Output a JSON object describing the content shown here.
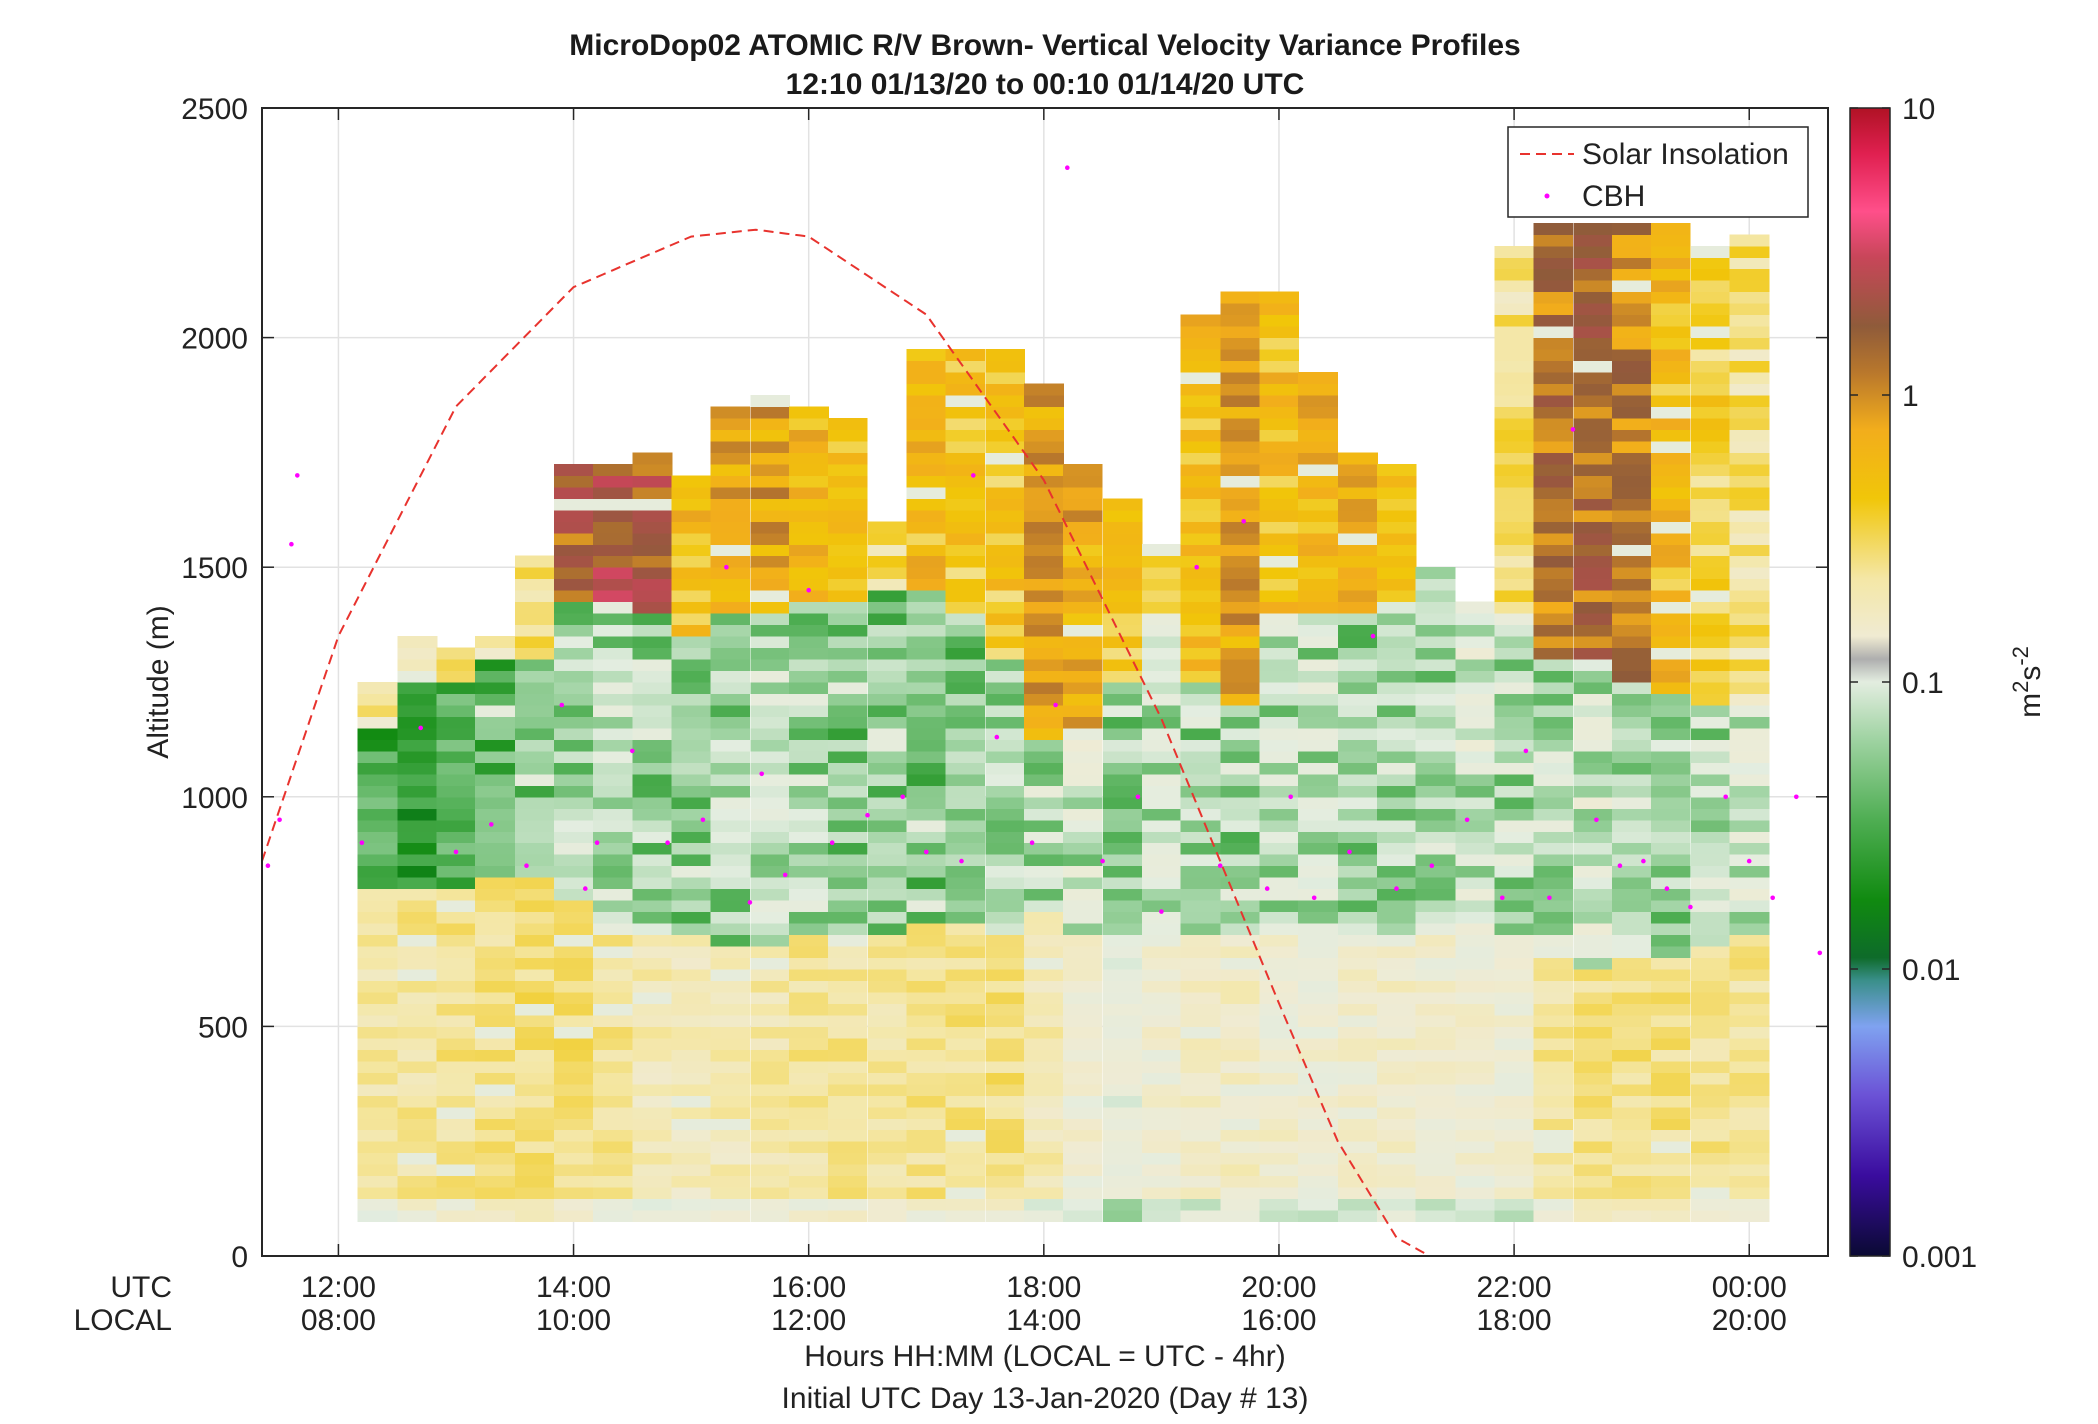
{
  "chart_data": {
    "type": "heatmap",
    "title": "MicroDop02 ATOMIC R/V Brown- Vertical Velocity Variance Profiles",
    "subtitle": "12:10 01/13/20 to 00:10 01/14/20  UTC",
    "ylabel": "Altitude (m)",
    "xlabel_line1": "Hours HH:MM  (LOCAL = UTC - 4hr)",
    "xlabel_line2": "Initial UTC Day 13-Jan-2020 (Day # 13)",
    "x_row_label_utc": "UTC",
    "x_row_label_local": "LOCAL",
    "ylim": [
      0,
      2500
    ],
    "xlim_hours_utc": [
      11.35,
      24.67
    ],
    "yticks": [
      "0",
      "500",
      "1000",
      "1500",
      "2000",
      "2500"
    ],
    "xticks_utc": [
      "12:00",
      "14:00",
      "16:00",
      "18:00",
      "20:00",
      "22:00",
      "00:00"
    ],
    "xticks_local": [
      "08:00",
      "10:00",
      "12:00",
      "14:00",
      "16:00",
      "18:00",
      "20:00"
    ],
    "grid": true,
    "legend_position": "top-right",
    "legend": [
      {
        "label": "Solar Insolation",
        "style": "dashed-line",
        "color": "#e8332e"
      },
      {
        "label": "CBH",
        "style": "point",
        "color": "#ff00ff"
      }
    ],
    "colorbar": {
      "label": "m2s-2",
      "scale": "log",
      "ticks": [
        "0.001",
        "0.01",
        "0.1",
        "1",
        "10"
      ]
    },
    "columns": [
      {
        "t": 12.33,
        "top": 1250,
        "base": 0.22,
        "mix": 0.03,
        "bl": 780,
        "zi": 1150
      },
      {
        "t": 12.67,
        "top": 1340,
        "base": 0.24,
        "mix": 0.02,
        "bl": 780,
        "zi": 1250
      },
      {
        "t": 13.0,
        "top": 1320,
        "base": 0.25,
        "mix": 0.03,
        "bl": 800,
        "zi": 1250
      },
      {
        "t": 13.33,
        "top": 1350,
        "base": 0.26,
        "mix": 0.035,
        "bl": 820,
        "zi": 1280
      },
      {
        "t": 13.67,
        "top": 1510,
        "base": 0.28,
        "mix": 0.05,
        "bl": 820,
        "zi": 1300
      },
      {
        "t": 14.0,
        "top": 1720,
        "base": 0.28,
        "mix": 0.06,
        "bl": 760,
        "zi": 1420,
        "cloud": 1.8
      },
      {
        "t": 14.33,
        "top": 1720,
        "base": 0.24,
        "mix": 0.07,
        "bl": 700,
        "zi": 1420,
        "cloud": 2.4
      },
      {
        "t": 14.67,
        "top": 1740,
        "base": 0.2,
        "mix": 0.06,
        "bl": 680,
        "zi": 1380,
        "cloud": 2.0
      },
      {
        "t": 15.0,
        "top": 1700,
        "base": 0.19,
        "mix": 0.05,
        "bl": 680,
        "zi": 1330,
        "cloud": 0.6
      },
      {
        "t": 15.33,
        "top": 1850,
        "base": 0.2,
        "mix": 0.06,
        "bl": 670,
        "zi": 1400,
        "cloud": 0.8
      },
      {
        "t": 15.67,
        "top": 1860,
        "base": 0.22,
        "mix": 0.07,
        "bl": 670,
        "zi": 1390,
        "cloud": 0.9
      },
      {
        "t": 16.0,
        "top": 1850,
        "base": 0.24,
        "mix": 0.06,
        "bl": 680,
        "zi": 1420,
        "cloud": 0.7
      },
      {
        "t": 16.33,
        "top": 1810,
        "base": 0.24,
        "mix": 0.05,
        "bl": 690,
        "zi": 1420,
        "cloud": 0.5
      },
      {
        "t": 16.67,
        "top": 1590,
        "base": 0.23,
        "mix": 0.05,
        "bl": 700,
        "zi": 1430,
        "cloud": 0.3
      },
      {
        "t": 17.0,
        "top": 1960,
        "base": 0.25,
        "mix": 0.05,
        "bl": 720,
        "zi": 1440,
        "cloud": 0.6
      },
      {
        "t": 17.33,
        "top": 1960,
        "base": 0.26,
        "mix": 0.05,
        "bl": 720,
        "zi": 1400,
        "cloud": 0.5
      },
      {
        "t": 17.67,
        "top": 1960,
        "base": 0.27,
        "mix": 0.06,
        "bl": 700,
        "zi": 1300,
        "cloud": 0.5
      },
      {
        "t": 18.0,
        "top": 1880,
        "base": 0.2,
        "mix": 0.07,
        "bl": 740,
        "zi": 1110,
        "cloud": 0.9
      },
      {
        "t": 18.33,
        "top": 1710,
        "base": 0.14,
        "mix": 0.08,
        "bl": 700,
        "zi": 1150,
        "cloud": 0.8
      },
      {
        "t": 18.67,
        "top": 1650,
        "base": 0.12,
        "mix": 0.06,
        "bl": 680,
        "zi": 1250,
        "cloud": 0.5
      },
      {
        "t": 19.0,
        "top": 1540,
        "base": 0.14,
        "mix": 0.07,
        "bl": 680,
        "zi": 1400,
        "cloud": 0.3
      },
      {
        "t": 19.33,
        "top": 2050,
        "base": 0.16,
        "mix": 0.06,
        "bl": 700,
        "zi": 1250,
        "cloud": 0.6
      },
      {
        "t": 19.67,
        "top": 2090,
        "base": 0.17,
        "mix": 0.06,
        "bl": 700,
        "zi": 1200,
        "cloud": 0.9
      },
      {
        "t": 20.0,
        "top": 2090,
        "base": 0.15,
        "mix": 0.07,
        "bl": 700,
        "zi": 1380,
        "cloud": 0.6
      },
      {
        "t": 20.33,
        "top": 1920,
        "base": 0.14,
        "mix": 0.07,
        "bl": 700,
        "zi": 1390,
        "cloud": 0.7
      },
      {
        "t": 20.67,
        "top": 1740,
        "base": 0.15,
        "mix": 0.06,
        "bl": 700,
        "zi": 1380,
        "cloud": 0.7
      },
      {
        "t": 21.0,
        "top": 1710,
        "base": 0.16,
        "mix": 0.06,
        "bl": 700,
        "zi": 1420,
        "cloud": 0.5
      },
      {
        "t": 21.33,
        "top": 1480,
        "base": 0.15,
        "mix": 0.07,
        "bl": 700,
        "zi": 1480
      },
      {
        "t": 21.67,
        "top": 1420,
        "base": 0.14,
        "mix": 0.08,
        "bl": 700,
        "zi": 1420
      },
      {
        "t": 22.0,
        "top": 2180,
        "base": 0.14,
        "mix": 0.07,
        "bl": 700,
        "zi": 1380,
        "cloud": 0.3
      },
      {
        "t": 22.33,
        "top": 2250,
        "base": 0.24,
        "mix": 0.07,
        "bl": 640,
        "zi": 1300,
        "cloud": 1.5
      },
      {
        "t": 22.67,
        "top": 2250,
        "base": 0.26,
        "mix": 0.08,
        "bl": 620,
        "zi": 1280,
        "cloud": 1.6
      },
      {
        "t": 23.0,
        "top": 2250,
        "base": 0.27,
        "mix": 0.07,
        "bl": 630,
        "zi": 1230,
        "cloud": 1.3
      },
      {
        "t": 23.33,
        "top": 2250,
        "base": 0.26,
        "mix": 0.06,
        "bl": 640,
        "zi": 1220,
        "cloud": 0.6
      },
      {
        "t": 23.67,
        "top": 2200,
        "base": 0.25,
        "mix": 0.07,
        "bl": 660,
        "zi": 1180,
        "cloud": 0.4
      },
      {
        "t": 24.0,
        "top": 2220,
        "base": 0.24,
        "mix": 0.08,
        "bl": 680,
        "zi": 1200,
        "cloud": 0.3
      }
    ],
    "solar_insolation_hours_utc": [
      11.35,
      12.0,
      13.0,
      14.0,
      15.0,
      15.55,
      16.0,
      17.0,
      18.0,
      19.0,
      20.0,
      20.5,
      21.0,
      21.28,
      24.67
    ],
    "solar_insolation_altitude_m": [
      860,
      1350,
      1850,
      2110,
      2220,
      2235,
      2220,
      2050,
      1690,
      1170,
      550,
      250,
      40,
      0,
      0
    ],
    "cbh_hours_utc": [
      11.4,
      11.5,
      11.6,
      11.65,
      12.2,
      12.7,
      13.0,
      13.3,
      13.6,
      13.9,
      14.1,
      14.2,
      14.5,
      14.8,
      15.1,
      15.3,
      15.5,
      15.6,
      15.8,
      16.0,
      16.2,
      16.5,
      16.8,
      17.0,
      17.3,
      17.4,
      17.6,
      17.9,
      18.1,
      18.2,
      18.5,
      18.8,
      19.0,
      19.3,
      19.5,
      19.7,
      19.9,
      20.1,
      20.3,
      20.6,
      20.8,
      21.0,
      21.3,
      21.6,
      21.9,
      22.1,
      22.3,
      22.5,
      22.7,
      22.9,
      23.1,
      23.3,
      23.5,
      23.8,
      24.0,
      24.2,
      24.4,
      24.6
    ],
    "cbh_altitude_m": [
      850,
      950,
      1550,
      1700,
      900,
      1150,
      880,
      940,
      850,
      1200,
      800,
      900,
      1100,
      900,
      950,
      1500,
      770,
      1050,
      830,
      1450,
      900,
      960,
      1000,
      880,
      860,
      1700,
      1130,
      900,
      1200,
      2370,
      860,
      1000,
      750,
      1500,
      850,
      1600,
      800,
      1000,
      780,
      880,
      1350,
      800,
      850,
      950,
      780,
      1100,
      780,
      1800,
      950,
      850,
      860,
      800,
      760,
      1000,
      860,
      780,
      1000,
      660
    ]
  }
}
